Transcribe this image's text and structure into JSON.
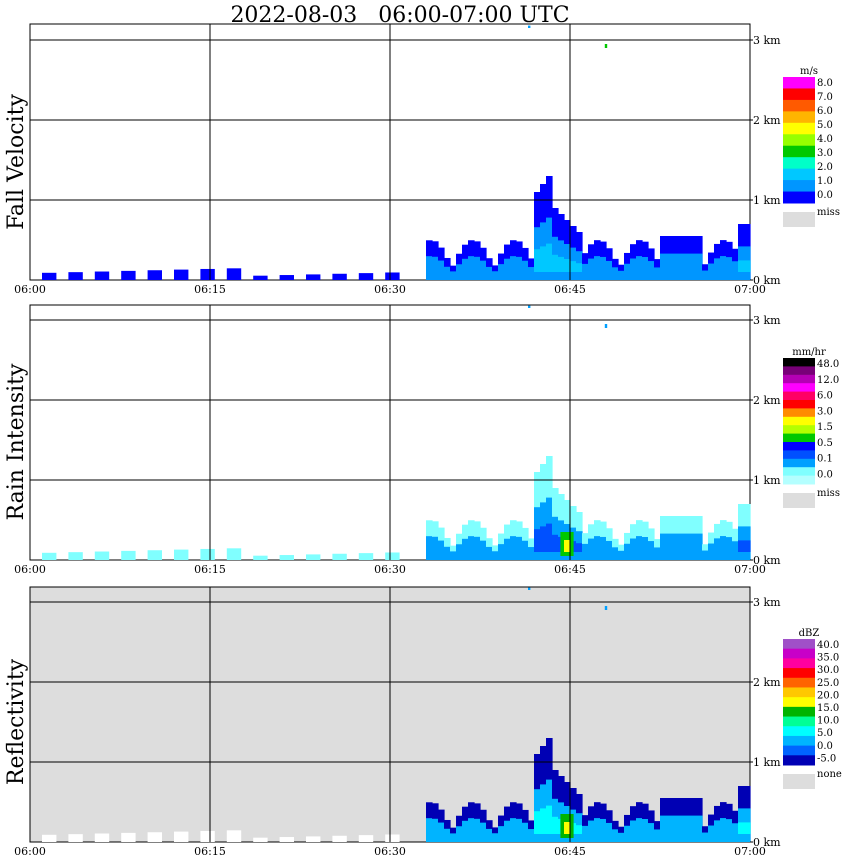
{
  "title": "2022-08-03   06:00-07:00 UTC",
  "chart_data": [
    {
      "type": "heatmap",
      "panel_label": "Fall Velocity",
      "x_ticks": [
        "06:00",
        "06:15",
        "06:30",
        "06:45",
        "07:00"
      ],
      "y_ticks": [
        "0 km",
        "1 km",
        "2 km",
        "3 km"
      ],
      "xlim": [
        "06:00",
        "07:00"
      ],
      "ylim_km": [
        0,
        3.2
      ],
      "background": "#ffffff",
      "colorbar": {
        "unit": "m/s",
        "labels": [
          "8.0",
          "7.0",
          "6.0",
          "5.0",
          "4.0",
          "3.0",
          "2.0",
          "1.0",
          "0.0"
        ],
        "colors": [
          "#ff00ff",
          "#ff0000",
          "#ff5a00",
          "#ffb400",
          "#ffff00",
          "#96ff00",
          "#00c800",
          "#00ffc8",
          "#00c8ff",
          "#0096ff",
          "#0000ff"
        ],
        "miss_label": "miss",
        "miss_color": "#dddddd"
      }
    },
    {
      "type": "heatmap",
      "panel_label": "Rain Intensity",
      "x_ticks": [
        "06:00",
        "06:15",
        "06:30",
        "06:45",
        "07:00"
      ],
      "y_ticks": [
        "0 km",
        "1 km",
        "2 km",
        "3 km"
      ],
      "xlim": [
        "06:00",
        "07:00"
      ],
      "ylim_km": [
        0,
        3.2
      ],
      "background": "#ffffff",
      "colorbar": {
        "unit": "mm/hr",
        "labels": [
          "48.0",
          "12.0",
          "6.0",
          "3.0",
          "1.5",
          "0.5",
          "0.1",
          "0.0"
        ],
        "colors": [
          "#000000",
          "#780078",
          "#b400b4",
          "#ff00ff",
          "#ff0064",
          "#ff0000",
          "#ff8c00",
          "#ffff00",
          "#b4ff00",
          "#00c800",
          "#0000ff",
          "#0050ff",
          "#00a0ff",
          "#80ffff",
          "#b4ffff"
        ],
        "miss_label": "miss",
        "miss_color": "#dddddd"
      }
    },
    {
      "type": "heatmap",
      "panel_label": "Reflectivity",
      "x_ticks": [
        "06:00",
        "06:15",
        "06:30",
        "06:45",
        "07:00"
      ],
      "y_ticks": [
        "0 km",
        "1 km",
        "2 km",
        "3 km"
      ],
      "xlim": [
        "06:00",
        "07:00"
      ],
      "ylim_km": [
        0,
        3.2
      ],
      "background": "#dddddd",
      "colorbar": {
        "unit": "dBZ",
        "labels": [
          "40.0",
          "35.0",
          "30.0",
          "25.0",
          "20.0",
          "15.0",
          "10.0",
          "5.0",
          "0.0",
          "-5.0"
        ],
        "colors": [
          "#a050c8",
          "#c800c8",
          "#ff00a0",
          "#ff0000",
          "#ff6400",
          "#ffc800",
          "#ffff00",
          "#00b400",
          "#00ff96",
          "#00ffff",
          "#00b4ff",
          "#0064ff",
          "#0000b4"
        ],
        "miss_label": "none",
        "miss_color": "#dddddd"
      }
    }
  ]
}
